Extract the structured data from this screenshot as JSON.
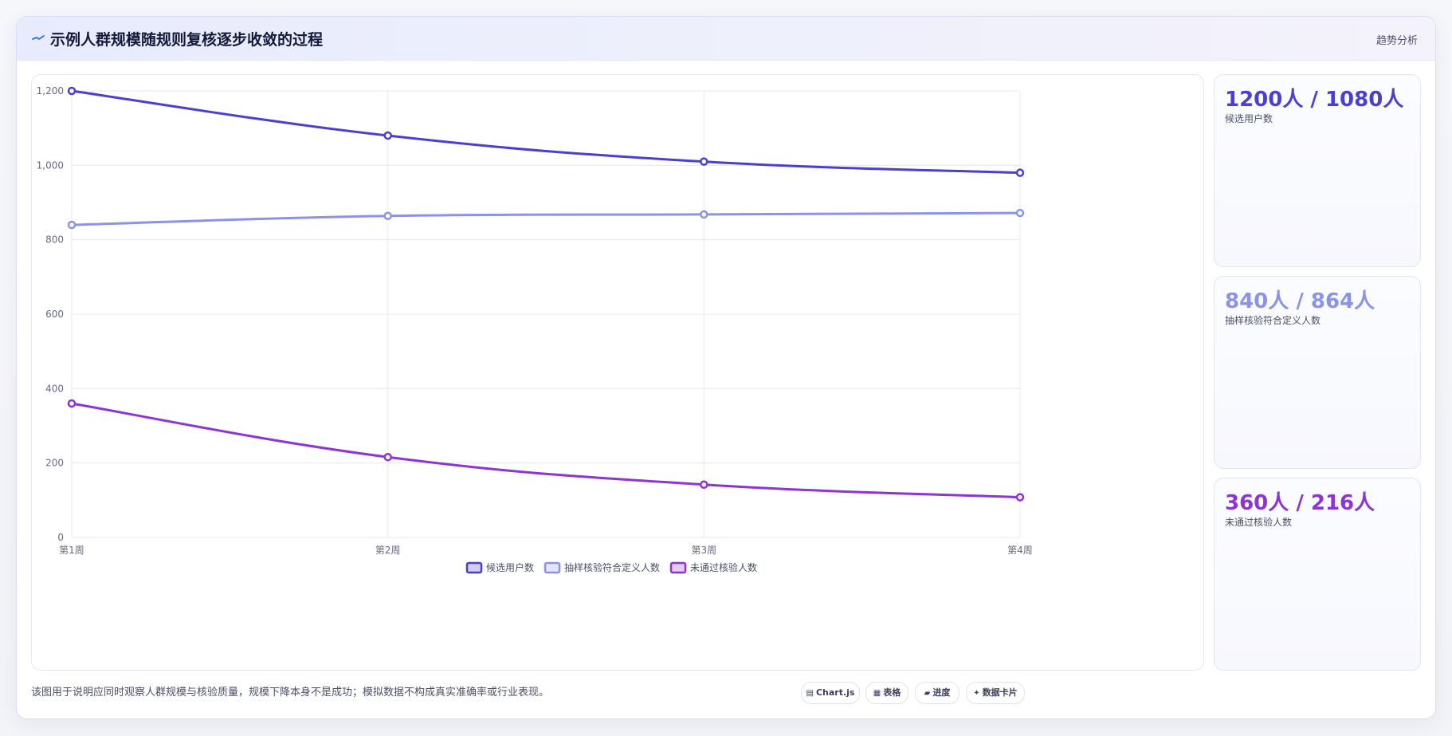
{
  "header": {
    "title": "示例人群规模随规则复核逐步收敛的过程",
    "tag": "趋势分析"
  },
  "stats": [
    {
      "value": "1200人 / 1080人",
      "label": "候选用户数",
      "color": "#4a3fd4"
    },
    {
      "value": "840人 / 864人",
      "label": "抽样核验符合定义人数",
      "color": "#8b93e8"
    },
    {
      "value": "360人 / 216人",
      "label": "未通过核验人数",
      "color": "#8e33d6"
    }
  ],
  "footer": {
    "note": "该图用于说明应同时观察人群规模与核验质量，规模下降本身不是成功；模拟数据不构成真实准确率或行业表现。",
    "chips": [
      {
        "icon": "▤",
        "icon_name": "chart-icon",
        "label": "Chart.js"
      },
      {
        "icon": "▦",
        "icon_name": "table-icon",
        "label": "表格"
      },
      {
        "icon": "▰",
        "icon_name": "progress-icon",
        "label": "进度"
      },
      {
        "icon": "✦",
        "icon_name": "card-icon",
        "label": "数据卡片"
      }
    ]
  },
  "chart_data": {
    "type": "line",
    "categories": [
      "第1周",
      "第2周",
      "第3周",
      "第4周"
    ],
    "ylim": [
      0,
      1200
    ],
    "yticks": [
      0,
      200,
      400,
      600,
      800,
      1000,
      1200
    ],
    "ytick_labels": [
      "0",
      "200",
      "400",
      "600",
      "800",
      "1,000",
      "1,200"
    ],
    "grid": true,
    "legend_position": "bottom",
    "series": [
      {
        "name": "候选用户数",
        "values": [
          1200,
          1080,
          1010,
          980
        ],
        "color": "#4a3fd4"
      },
      {
        "name": "抽样核验符合定义人数",
        "values": [
          840,
          864,
          868,
          872
        ],
        "color": "#8b93e8"
      },
      {
        "name": "未通过核验人数",
        "values": [
          360,
          216,
          142,
          108
        ],
        "color": "#8e33d6"
      }
    ]
  }
}
